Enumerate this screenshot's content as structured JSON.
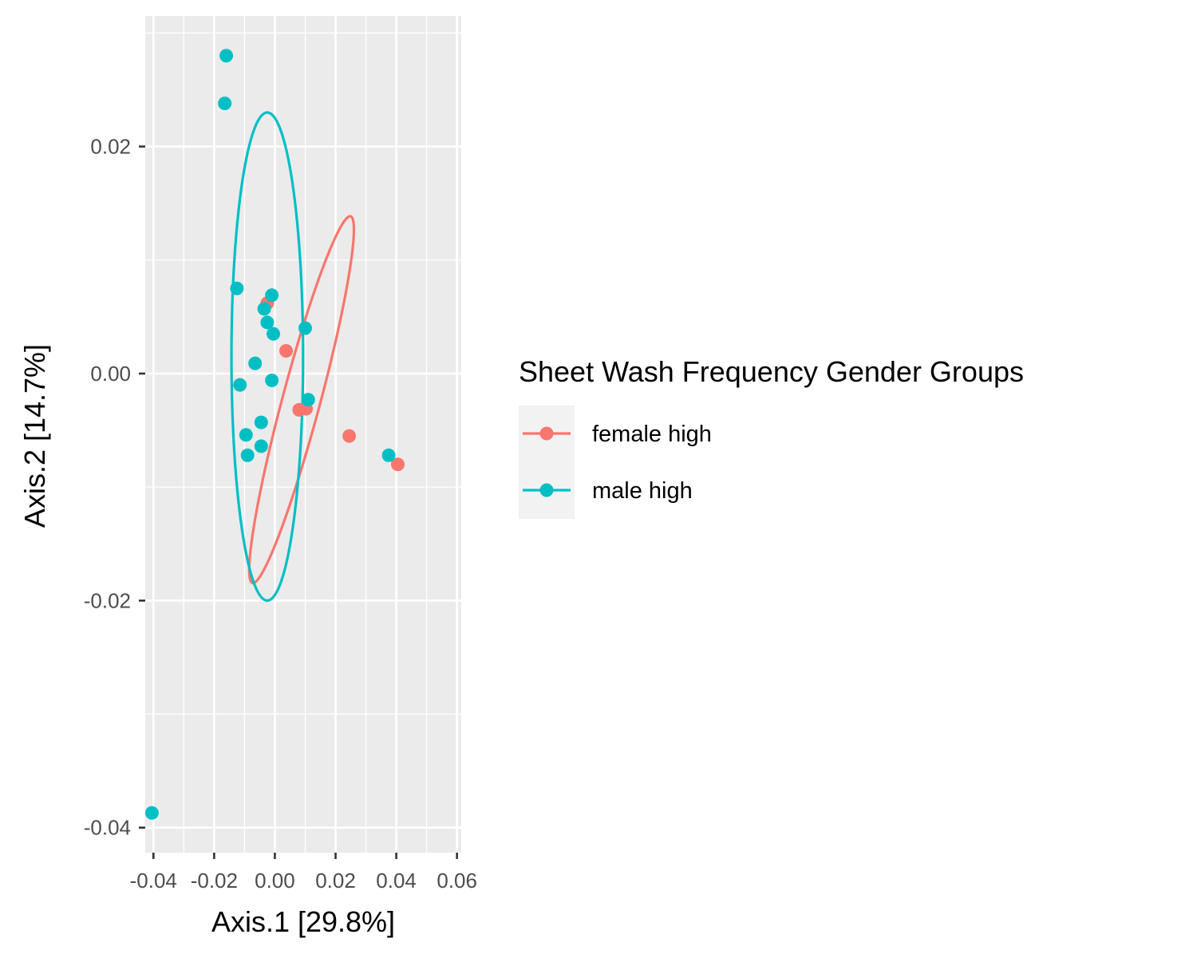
{
  "chart_data": {
    "type": "scatter",
    "xlabel": "Axis.1   [29.8%]",
    "ylabel": "Axis.2   [14.7%]",
    "xlim": [
      -0.0427,
      0.0614
    ],
    "ylim": [
      -0.0422,
      0.0315
    ],
    "x_ticks": [
      -0.04,
      -0.02,
      0.0,
      0.02,
      0.04,
      0.06
    ],
    "x_tick_labels": [
      "-0.04",
      "-0.02",
      "0.00",
      "0.02",
      "0.04",
      "0.06"
    ],
    "y_ticks": [
      -0.04,
      -0.02,
      0.0,
      0.02
    ],
    "y_tick_labels": [
      "-0.04",
      "-0.02",
      "0.00",
      "0.02"
    ],
    "grid": true,
    "legend": {
      "title": "Sheet Wash Frequency Gender Groups",
      "position": "right"
    },
    "series": [
      {
        "name": "female high",
        "color": "#F8766D",
        "points": [
          [
            -0.0025,
            0.0062
          ],
          [
            0.0037,
            0.002
          ],
          [
            0.008,
            -0.0032
          ],
          [
            0.0103,
            -0.0031
          ],
          [
            0.0245,
            -0.0055
          ],
          [
            0.0405,
            -0.008
          ]
        ],
        "ellipse": {
          "cx": 0.0088,
          "cy": -0.0023,
          "rx": 0.0232,
          "ry": 0.0045,
          "angle_deg": 43
        }
      },
      {
        "name": "male high",
        "color": "#00BFC4",
        "points": [
          [
            -0.016,
            0.028
          ],
          [
            -0.0165,
            0.0238
          ],
          [
            -0.0125,
            0.0075
          ],
          [
            -0.001,
            0.0069
          ],
          [
            -0.0035,
            0.0057
          ],
          [
            -0.0025,
            0.0045
          ],
          [
            -0.0005,
            0.0035
          ],
          [
            0.01,
            0.004
          ],
          [
            -0.0065,
            0.0009
          ],
          [
            -0.001,
            -0.0006
          ],
          [
            -0.0115,
            -0.001
          ],
          [
            0.011,
            -0.0023
          ],
          [
            -0.0045,
            -0.0043
          ],
          [
            -0.0095,
            -0.0054
          ],
          [
            -0.0045,
            -0.0064
          ],
          [
            -0.009,
            -0.0072
          ],
          [
            0.0375,
            -0.0072
          ],
          [
            -0.0405,
            -0.0387
          ]
        ],
        "ellipse": {
          "cx": -0.0025,
          "cy": 0.0015,
          "rx": 0.0118,
          "ry": 0.0215,
          "angle_deg": 0
        }
      }
    ]
  }
}
